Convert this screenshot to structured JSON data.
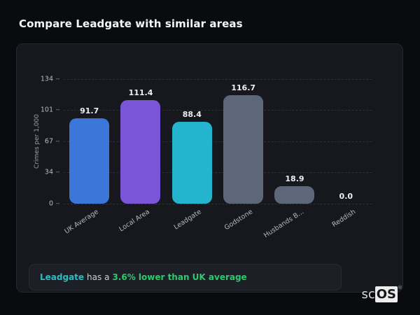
{
  "header": {
    "title": "Compare Leadgate with similar areas"
  },
  "chart_data": {
    "type": "bar",
    "title": "Compare Leadgate with similar areas",
    "categories": [
      "UK Average",
      "Local Area",
      "Leadgate",
      "Godstone",
      "Husbands B...",
      "Reddish"
    ],
    "values": [
      91.7,
      111.4,
      88.4,
      116.7,
      18.9,
      0.0
    ],
    "bar_colors": [
      "#3b76d8",
      "#7a55d8",
      "#25b4cd",
      "#5c6879",
      "#5c6879",
      "#5c6879"
    ],
    "xlabel": "",
    "ylabel": "Crimes per 1,000",
    "yticks": [
      0,
      34,
      67,
      101,
      134
    ],
    "ylim": [
      0,
      134
    ],
    "grid": "horizontal-dashed",
    "legend": "none",
    "value_label_decimals": 1
  },
  "annotation": {
    "area": "Leadgate",
    "middle": "has a",
    "stat": "3.6% lower than UK average",
    "area_color": "#31bac4",
    "stat_color": "#2ec96e"
  },
  "watermark": {
    "prefix": "sc",
    "badge": "OS",
    "registered": "®"
  },
  "colors": {
    "page_bg": "#0a0b0f",
    "card_bg": "#16181d",
    "card_border": "#24272d",
    "grid": "#2d3038",
    "tick_text": "#b9bdc3",
    "value_text": "#edeff2"
  }
}
